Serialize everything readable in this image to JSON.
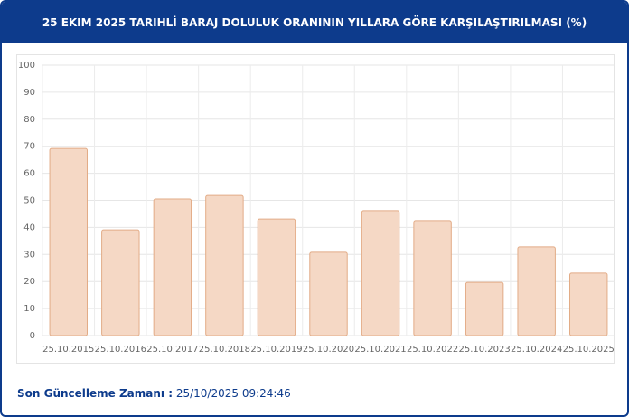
{
  "header": {
    "title": "25 EKIM 2025 TARIHLİ BARAJ DOLULUK ORANININ YILLARA GÖRE KARŞILAŞTIRILMASI (%)"
  },
  "chart_data": {
    "type": "bar",
    "categories": [
      "25.10.2015",
      "25.10.2016",
      "25.10.2017",
      "25.10.2018",
      "25.10.2019",
      "25.10.2020",
      "25.10.2021",
      "25.10.2022",
      "25.10.2023",
      "25.10.2024",
      "25.10.2025"
    ],
    "values": [
      69.2,
      39.1,
      50.5,
      51.8,
      43.1,
      30.8,
      46.2,
      42.5,
      19.7,
      32.8,
      23.1
    ],
    "color": "#f5d8c5",
    "ylim": [
      0,
      100
    ],
    "yticks": [
      0,
      10,
      20,
      30,
      40,
      50,
      60,
      70,
      80,
      90,
      100
    ],
    "grid": true
  },
  "footer": {
    "label": "Son Güncelleme Zamanı :",
    "value": "25/10/2025 09:24:46"
  }
}
